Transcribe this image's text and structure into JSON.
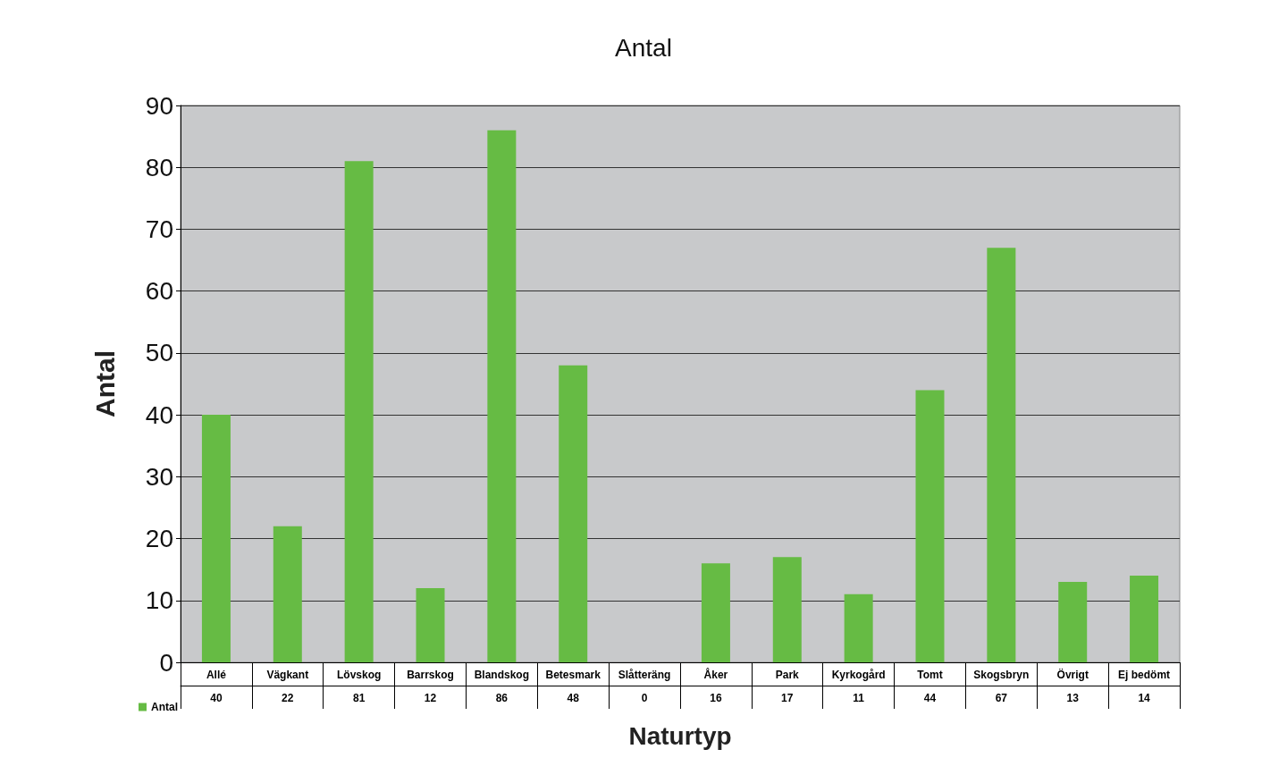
{
  "chart_data": {
    "type": "bar",
    "title": "Antal",
    "xlabel": "Naturtyp",
    "ylabel": "Antal",
    "categories": [
      "Allé",
      "Vägkant",
      "Lövskog",
      "Barrskog",
      "Blandskog",
      "Betesmark",
      "Slåtteräng",
      "Åker",
      "Park",
      "Kyrkogård",
      "Tomt",
      "Skogsbryn",
      "Övrigt",
      "Ej bedömt"
    ],
    "series": [
      {
        "name": "Antal",
        "color": "#66bb44",
        "values": [
          40,
          22,
          81,
          12,
          86,
          48,
          0,
          16,
          17,
          11,
          44,
          67,
          13,
          14
        ]
      }
    ],
    "ylim": [
      0,
      90
    ],
    "yticks": [
      0,
      10,
      20,
      30,
      40,
      50,
      60,
      70,
      80,
      90
    ],
    "grid": "y",
    "legend": "bottom left",
    "data_labels": true
  }
}
